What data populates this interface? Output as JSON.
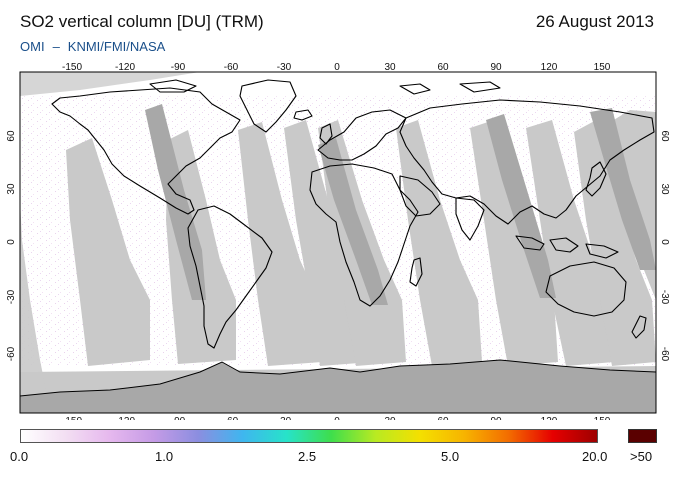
{
  "title": "SO2 vertical column [DU] (TRM)",
  "date": "26 August 2013",
  "subtitle": {
    "instrument": "OMI",
    "separator": "–",
    "source": "KNMI/FMI/NASA"
  },
  "map": {
    "projection": "equirectangular",
    "lon_ticks": [
      "-150",
      "-120",
      "-90",
      "-60",
      "-30",
      "0",
      "30",
      "60",
      "90",
      "120",
      "150"
    ],
    "lat_ticks": [
      "60",
      "30",
      "0",
      "-30",
      "-60"
    ],
    "no_data_color": "#c9c9c9",
    "overlap_color": "#a8a8a8",
    "coast_color": "#000000"
  },
  "colorbar": {
    "labels": [
      "0.0",
      "1.0",
      "2.5",
      "5.0",
      "20.0"
    ],
    "overflow_label": ">50",
    "overflow_color": "#5a0000",
    "gradient": [
      "#ffffff",
      "#f3dff3",
      "#e6b8ee",
      "#c59be6",
      "#8b8ee0",
      "#3fb6ef",
      "#27e3c9",
      "#3ede4c",
      "#b8ea22",
      "#f4e000",
      "#f7b400",
      "#f36d00",
      "#e60000",
      "#9e0000"
    ]
  }
}
